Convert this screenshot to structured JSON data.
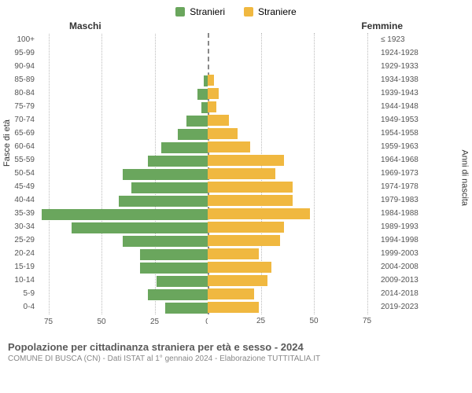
{
  "chart": {
    "type": "population-pyramid",
    "legend": [
      {
        "label": "Stranieri",
        "color": "#6aa65d"
      },
      {
        "label": "Straniere",
        "color": "#f0b840"
      }
    ],
    "header_left": "Maschi",
    "header_right": "Femmine",
    "y_axis_left_title": "Fasce di età",
    "y_axis_right_title": "Anni di nascita",
    "x_axis_max": 80,
    "x_ticks_left": [
      75,
      50,
      25,
      0
    ],
    "x_ticks_right": [
      0,
      25,
      50,
      75
    ],
    "grid_color": "#bbbbbb",
    "background_color": "#ffffff",
    "bar_colors": {
      "male": "#6aa65d",
      "female": "#f0b840"
    },
    "label_fontsize": 10,
    "age_groups": [
      {
        "age": "100+",
        "birth": "≤ 1923",
        "male": 0,
        "female": 0
      },
      {
        "age": "95-99",
        "birth": "1924-1928",
        "male": 0,
        "female": 0
      },
      {
        "age": "90-94",
        "birth": "1929-1933",
        "male": 0,
        "female": 0
      },
      {
        "age": "85-89",
        "birth": "1934-1938",
        "male": 2,
        "female": 3
      },
      {
        "age": "80-84",
        "birth": "1939-1943",
        "male": 5,
        "female": 5
      },
      {
        "age": "75-79",
        "birth": "1944-1948",
        "male": 3,
        "female": 4
      },
      {
        "age": "70-74",
        "birth": "1949-1953",
        "male": 10,
        "female": 10
      },
      {
        "age": "65-69",
        "birth": "1954-1958",
        "male": 14,
        "female": 14
      },
      {
        "age": "60-64",
        "birth": "1959-1963",
        "male": 22,
        "female": 20
      },
      {
        "age": "55-59",
        "birth": "1964-1968",
        "male": 28,
        "female": 36
      },
      {
        "age": "50-54",
        "birth": "1969-1973",
        "male": 40,
        "female": 32
      },
      {
        "age": "45-49",
        "birth": "1974-1978",
        "male": 36,
        "female": 40
      },
      {
        "age": "40-44",
        "birth": "1979-1983",
        "male": 42,
        "female": 40
      },
      {
        "age": "35-39",
        "birth": "1984-1988",
        "male": 78,
        "female": 48
      },
      {
        "age": "30-34",
        "birth": "1989-1993",
        "male": 64,
        "female": 36
      },
      {
        "age": "25-29",
        "birth": "1994-1998",
        "male": 40,
        "female": 34
      },
      {
        "age": "20-24",
        "birth": "1999-2003",
        "male": 32,
        "female": 24
      },
      {
        "age": "15-19",
        "birth": "2004-2008",
        "male": 32,
        "female": 30
      },
      {
        "age": "10-14",
        "birth": "2009-2013",
        "male": 24,
        "female": 28
      },
      {
        "age": "5-9",
        "birth": "2014-2018",
        "male": 28,
        "female": 22
      },
      {
        "age": "0-4",
        "birth": "2019-2023",
        "male": 20,
        "female": 24
      }
    ]
  },
  "caption": {
    "title": "Popolazione per cittadinanza straniera per età e sesso - 2024",
    "subtitle": "COMUNE DI BUSCA (CN) - Dati ISTAT al 1° gennaio 2024 - Elaborazione TUTTITALIA.IT"
  }
}
